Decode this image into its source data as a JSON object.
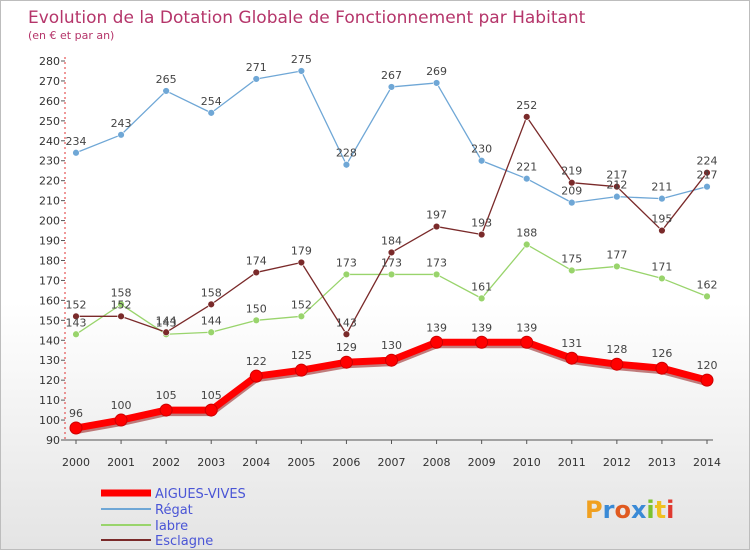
{
  "chart_data": {
    "type": "line",
    "title": "Evolution de la Dotation Globale de Fonctionnement par Habitant",
    "subtitle": "(en € et par an)",
    "x": [
      "2000",
      "2001",
      "2002",
      "2003",
      "2004",
      "2005",
      "2006",
      "2007",
      "2008",
      "2009",
      "2010",
      "2011",
      "2012",
      "2013",
      "2014"
    ],
    "ylim": [
      90,
      280
    ],
    "yticks": [
      90,
      100,
      110,
      120,
      130,
      140,
      150,
      160,
      170,
      180,
      190,
      200,
      210,
      220,
      230,
      240,
      250,
      260,
      270,
      280
    ],
    "grid": false,
    "legend_position": "bottom-left",
    "series": [
      {
        "name": "AIGUES-VIVES",
        "color": "#ff0000",
        "values": [
          96,
          100,
          105,
          105,
          122,
          125,
          129,
          130,
          139,
          139,
          139,
          131,
          128,
          126,
          120
        ]
      },
      {
        "name": "Régat",
        "color": "#6fa7d6",
        "values": [
          234,
          243,
          265,
          254,
          271,
          275,
          228,
          267,
          269,
          230,
          221,
          209,
          212,
          211,
          217
        ]
      },
      {
        "name": "Iabre",
        "color": "#99d46c",
        "values": [
          143,
          158,
          143,
          144,
          150,
          152,
          173,
          173,
          173,
          161,
          188,
          175,
          177,
          171,
          162
        ]
      },
      {
        "name": "Esclagne",
        "color": "#7a2a2a",
        "values": [
          152,
          152,
          144,
          158,
          174,
          179,
          143,
          184,
          197,
          193,
          252,
          219,
          217,
          195,
          224
        ]
      }
    ]
  },
  "logo": {
    "text": "Proxiti"
  }
}
